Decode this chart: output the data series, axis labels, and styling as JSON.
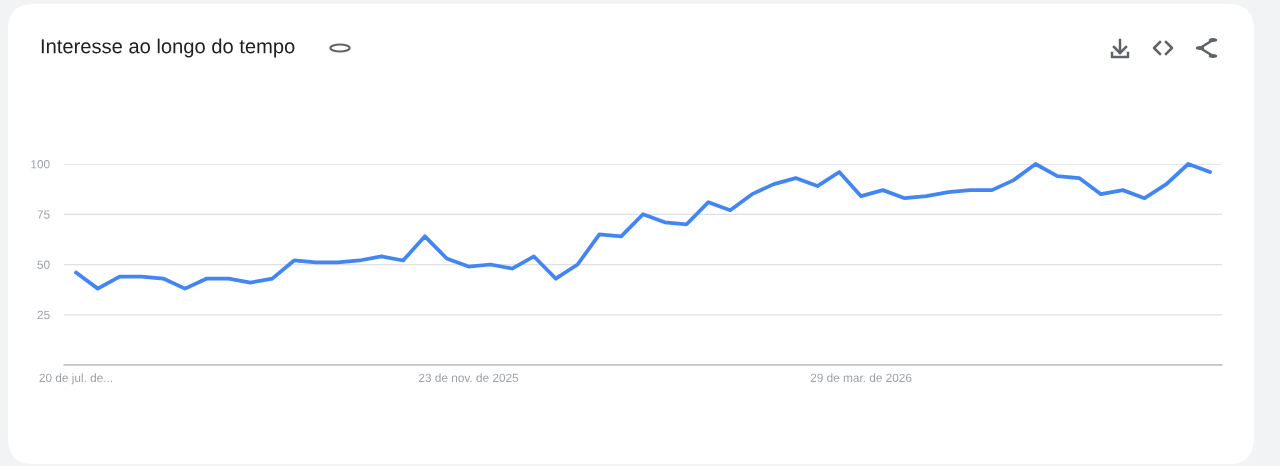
{
  "chart_data": {
    "type": "line",
    "title": "Interesse ao longo do tempo",
    "categories": [
      "20 de jul. de...",
      null,
      null,
      null,
      null,
      null,
      null,
      null,
      null,
      null,
      null,
      null,
      null,
      null,
      null,
      null,
      null,
      null,
      "23 de nov. de 2025",
      null,
      null,
      null,
      null,
      null,
      null,
      null,
      null,
      null,
      null,
      null,
      null,
      null,
      null,
      null,
      null,
      null,
      "29 de mar. de 2026",
      null,
      null,
      null,
      null,
      null,
      null,
      null,
      null,
      null,
      null,
      null,
      null,
      null,
      null,
      null,
      null
    ],
    "series": [
      {
        "color": "#4285f4",
        "values": [
          46,
          38,
          44,
          44,
          43,
          38,
          43,
          43,
          41,
          43,
          52,
          51,
          51,
          52,
          54,
          52,
          64,
          53,
          49,
          50,
          48,
          54,
          43,
          50,
          65,
          64,
          75,
          71,
          70,
          81,
          77,
          85,
          90,
          93,
          89,
          96,
          84,
          87,
          83,
          84,
          86,
          87,
          87,
          92,
          100,
          94,
          93,
          85,
          87,
          83,
          90,
          100,
          96
        ]
      }
    ],
    "ylim": [
      0,
      100
    ],
    "yticks": [
      {
        "value": 0,
        "label": null
      },
      25,
      50,
      75,
      100
    ],
    "grid": "y",
    "legend": false,
    "marker": "none",
    "line_style": "solid"
  }
}
